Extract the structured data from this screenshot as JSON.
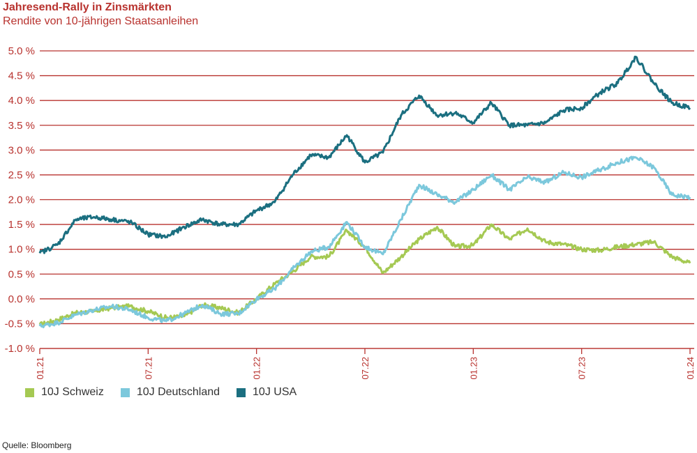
{
  "chart_data": {
    "type": "line",
    "title": "Jahresend-Rally in Zinsmärkten",
    "subtitle": "Rendite von 10-jährigen Staatsanleihen",
    "source": "Quelle: Bloomberg",
    "ylim": [
      -1.0,
      5.0
    ],
    "y_ticks": [
      5.0,
      4.5,
      4.0,
      3.5,
      3.0,
      2.5,
      2.0,
      1.5,
      1.0,
      0.5,
      0.0,
      -0.5,
      -1.0
    ],
    "y_tick_labels": [
      "5.0 %",
      "4.5 %",
      "4.0 %",
      "3.5 %",
      "3.0 %",
      "2.5 %",
      "2.0 %",
      "1.5 %",
      "1.0 %",
      "0.5 %",
      "0.0 %",
      "-0.5 %",
      "-1.0 %"
    ],
    "x_tick_labels": [
      "01.21",
      "07.21",
      "01.22",
      "07.22",
      "01.23",
      "07.23",
      "01.24"
    ],
    "grid": "horizontal",
    "legend_position": "bottom-left",
    "x": [
      "2021-01",
      "2021-02",
      "2021-03",
      "2021-04",
      "2021-05",
      "2021-06",
      "2021-07",
      "2021-08",
      "2021-09",
      "2021-10",
      "2021-11",
      "2021-12",
      "2022-01",
      "2022-02",
      "2022-03",
      "2022-04",
      "2022-05",
      "2022-06",
      "2022-07",
      "2022-08",
      "2022-09",
      "2022-10",
      "2022-11",
      "2022-12",
      "2023-01",
      "2023-02",
      "2023-03",
      "2023-04",
      "2023-05",
      "2023-06",
      "2023-07",
      "2023-08",
      "2023-09",
      "2023-10",
      "2023-11",
      "2023-12",
      "2024-01"
    ],
    "series": [
      {
        "name": "10J Schweiz",
        "color": "#a5c953",
        "values": [
          -0.52,
          -0.42,
          -0.28,
          -0.25,
          -0.18,
          -0.15,
          -0.25,
          -0.38,
          -0.35,
          -0.12,
          -0.18,
          -0.28,
          0.0,
          0.3,
          0.55,
          0.85,
          0.85,
          1.38,
          1.05,
          0.52,
          0.85,
          1.2,
          1.45,
          1.05,
          1.08,
          1.5,
          1.2,
          1.42,
          1.15,
          1.1,
          1.0,
          0.98,
          1.05,
          1.1,
          1.15,
          0.85,
          0.72
        ]
      },
      {
        "name": "10J Deutschland",
        "color": "#7cc8dc",
        "values": [
          -0.55,
          -0.48,
          -0.32,
          -0.22,
          -0.15,
          -0.22,
          -0.38,
          -0.45,
          -0.3,
          -0.12,
          -0.3,
          -0.3,
          0.0,
          0.2,
          0.6,
          0.95,
          1.05,
          1.55,
          1.05,
          0.9,
          1.6,
          2.3,
          2.1,
          1.95,
          2.2,
          2.5,
          2.2,
          2.45,
          2.35,
          2.55,
          2.45,
          2.6,
          2.75,
          2.85,
          2.65,
          2.1,
          2.05
        ]
      },
      {
        "name": "10J USA",
        "color": "#1b6f80",
        "values": [
          0.92,
          1.1,
          1.6,
          1.65,
          1.6,
          1.55,
          1.3,
          1.25,
          1.45,
          1.6,
          1.5,
          1.5,
          1.78,
          1.95,
          2.5,
          2.9,
          2.85,
          3.3,
          2.75,
          2.95,
          3.7,
          4.1,
          3.7,
          3.75,
          3.55,
          3.95,
          3.5,
          3.5,
          3.55,
          3.8,
          3.85,
          4.15,
          4.35,
          4.88,
          4.35,
          3.95,
          3.85
        ]
      }
    ]
  }
}
